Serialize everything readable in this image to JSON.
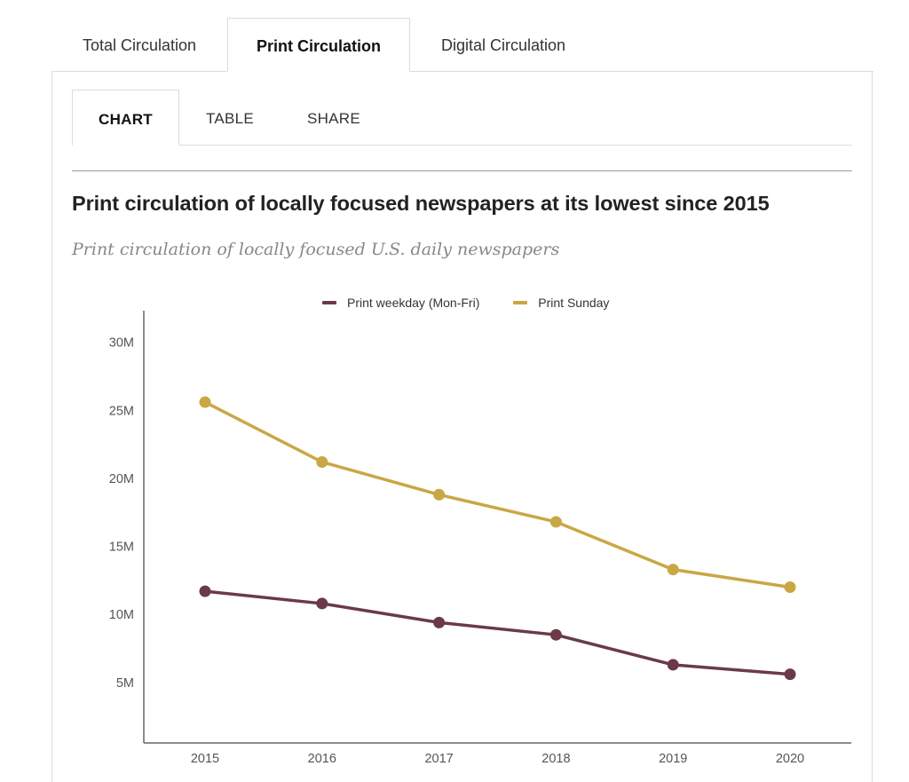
{
  "top_tabs": [
    {
      "label": "Total Circulation",
      "active": false
    },
    {
      "label": "Print Circulation",
      "active": true
    },
    {
      "label": "Digital Circulation",
      "active": false
    }
  ],
  "sub_tabs": [
    {
      "label": "CHART",
      "active": true
    },
    {
      "label": "TABLE",
      "active": false
    },
    {
      "label": "SHARE",
      "active": false
    }
  ],
  "chart_data": {
    "type": "line",
    "title": "Print circulation of locally focused newspapers at its lowest since 2015",
    "subtitle": "Print circulation of locally focused U.S. daily newspapers",
    "x": [
      "2015",
      "2016",
      "2017",
      "2018",
      "2019",
      "2020"
    ],
    "ylim": [
      0,
      30
    ],
    "yticks": [
      5,
      10,
      15,
      20,
      25,
      30
    ],
    "ytick_labels": [
      "5M",
      "10M",
      "15M",
      "20M",
      "25M",
      "30M"
    ],
    "legend_position": "top-center",
    "grid": false,
    "series": [
      {
        "name": "Print weekday (Mon-Fri)",
        "color": "#6b3a47",
        "values": [
          11.7,
          10.8,
          9.4,
          8.5,
          6.3,
          5.6
        ]
      },
      {
        "name": "Print Sunday",
        "color": "#c9a744",
        "values": [
          25.6,
          21.2,
          18.8,
          16.8,
          13.3,
          12.0
        ]
      }
    ]
  }
}
